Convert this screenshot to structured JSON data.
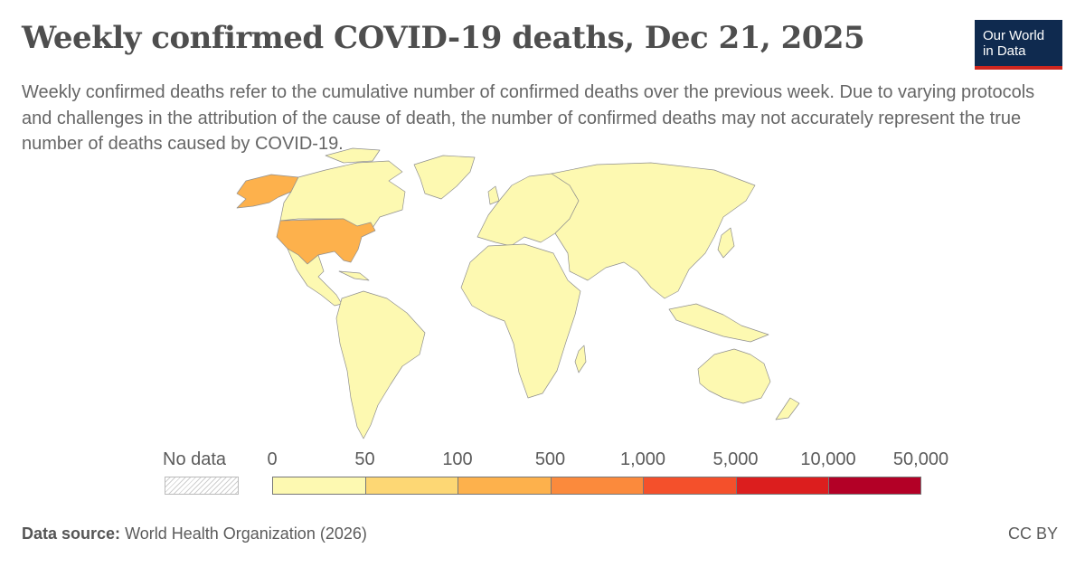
{
  "header": {
    "title": "Weekly confirmed COVID-19 deaths, Dec 21, 2025",
    "subtitle": "Weekly confirmed deaths refer to the cumulative number of confirmed deaths over the previous week. Due to varying protocols and challenges in the attribution of the cause of death, the number of confirmed deaths may not accurately represent the true number of deaths caused by COVID-19."
  },
  "logo": {
    "line1": "Our World",
    "line2": "in Data"
  },
  "legend": {
    "no_data_label": "No data",
    "ticks": [
      "0",
      "50",
      "100",
      "500",
      "1,000",
      "5,000",
      "10,000",
      "50,000"
    ],
    "colors": [
      "#fdf9b1",
      "#fdd774",
      "#fdb14c",
      "#fb8a3c",
      "#f4502b",
      "#dc1e1e",
      "#b30026"
    ]
  },
  "chart_data": {
    "type": "choropleth",
    "title": "Weekly confirmed COVID-19 deaths, Dec 21, 2025",
    "bins": [
      0,
      50,
      100,
      500,
      1000,
      5000,
      10000,
      50000
    ],
    "regions": [
      {
        "name": "United States",
        "bin": "100-500"
      },
      {
        "name": "Canada",
        "bin": "0-50"
      },
      {
        "name": "Mexico",
        "bin": "0-50"
      },
      {
        "name": "South America",
        "bin": "0-50"
      },
      {
        "name": "Europe",
        "bin": "0-50"
      },
      {
        "name": "Africa",
        "bin": "0-50"
      },
      {
        "name": "Asia",
        "bin": "0-50"
      },
      {
        "name": "Australia",
        "bin": "0-50"
      },
      {
        "name": "Greenland",
        "bin": "0-50"
      }
    ]
  },
  "footer": {
    "source_label": "Data source:",
    "source_value": "World Health Organization (2026)",
    "license": "CC BY"
  }
}
